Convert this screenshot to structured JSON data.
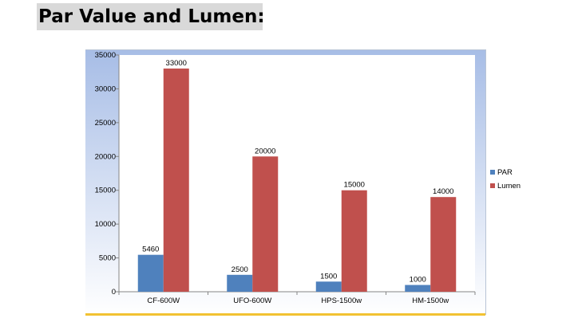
{
  "heading": {
    "title": "Par Value and Lumen:"
  },
  "colors": {
    "par": "#4f81bd",
    "lumen": "#c0504d",
    "panel_top": "#a7bde6",
    "panel_bottom": "#ffffff",
    "gold_border": "#f2c232"
  },
  "chart_data": {
    "type": "bar",
    "categories": [
      "CF-600W",
      "UFO-600W",
      "HPS-1500w",
      "HM-1500w"
    ],
    "series": [
      {
        "name": "PAR",
        "values": [
          5460,
          2500,
          1500,
          1000
        ]
      },
      {
        "name": "Lumen",
        "values": [
          33000,
          20000,
          15000,
          14000
        ]
      }
    ],
    "data_labels": true,
    "ylim": [
      0,
      35000
    ],
    "yticks": [
      0,
      5000,
      10000,
      15000,
      20000,
      25000,
      30000,
      35000
    ],
    "grid": false,
    "legend_position": "right"
  }
}
